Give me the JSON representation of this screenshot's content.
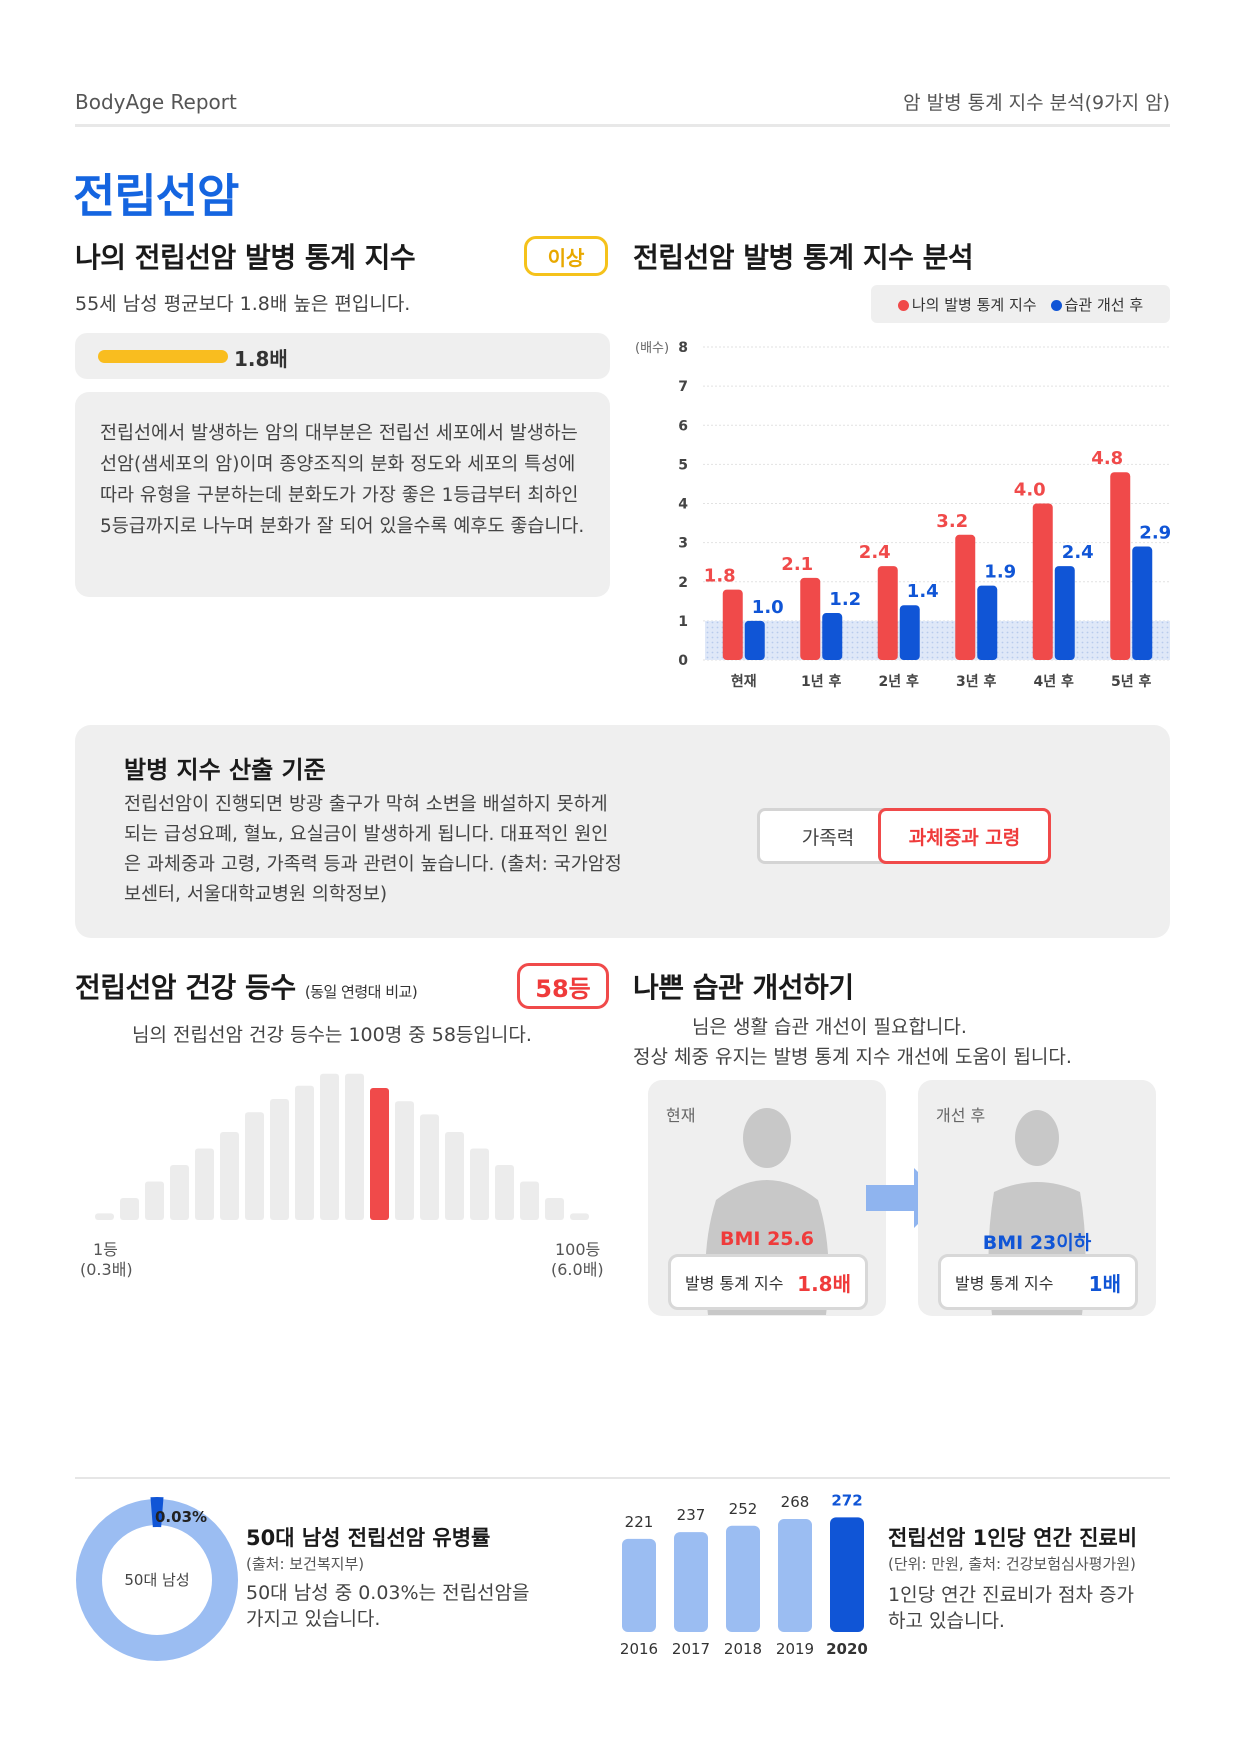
{
  "header": {
    "brand": "BodyAge Report",
    "section": "암 발병 통계 지수 분석(9가지 암)"
  },
  "page_title": "전립선암",
  "my_index": {
    "heading": "나의 전립선암 발병 통계 지수",
    "badge": "이상",
    "subtitle": "55세 남성 평균보다 1.8배 높은 편입니다.",
    "bar_label": "1.8배",
    "bar_value": 1.8,
    "description": "전립선에서 발생하는 암의 대부분은 전립선 세포에서 발생하는 선암(샘세포의 암)이며 종양조직의 분화 정도와 세포의 특성에 따라 유형을 구분하는데 분화도가 가장 좋은 1등급부터 최하인 5등급까지로 나누며 분화가 잘 되어 있을수록 예후도 좋습니다."
  },
  "analysis": {
    "heading": "전립선암 발병 통계 지수 분석",
    "legend_mine": "나의 발병 통계 지수",
    "legend_habit": "습관 개선 후",
    "y_unit": "(배수)"
  },
  "criteria": {
    "title": "발병 지수 산출 기준",
    "text": "전립선암이 진행되면 방광 출구가 막혀 소변을 배설하지 못하게 되는 급성요폐, 혈뇨, 요실금이 발생하게 됩니다. 대표적인 원인은 과체중과 고령, 가족력 등과 관련이 높습니다. (출처: 국가암정보센터, 서울대학교병원 의학정보)",
    "btn_family": "가족력",
    "btn_weight": "과체중과 고령"
  },
  "grade": {
    "heading": "전립선암 건강 등수",
    "note": "(동일 연령대 비교)",
    "badge": "58등",
    "subtitle": "님의 전립선암 건강 등수는 100명 중 58등입니다.",
    "left_label": "1등",
    "left_sub": "(0.3배)",
    "right_label": "100등",
    "right_sub": "(6.0배)",
    "highlight_index": 11,
    "heights": [
      6,
      20,
      35,
      50,
      65,
      80,
      98,
      110,
      122,
      133,
      133,
      120,
      108,
      96,
      80,
      65,
      50,
      35,
      20,
      6
    ]
  },
  "habit": {
    "heading": "나쁜 습관 개선하기",
    "line1": "님은 생활 습관 개선이 필요합니다.",
    "line2": "정상 체중 유지는 발병 통계 지수 개선에 도움이 됩니다.",
    "now_tag": "현재",
    "after_tag": "개선 후",
    "now_bmi": "BMI 25.6",
    "after_bmi": "BMI 23이하",
    "pill_label": "발병 통계 지수",
    "now_value": "1.8배",
    "after_value": "1배"
  },
  "prevalence": {
    "title": "50대 남성 전립선암 유병률",
    "source": "(출처: 보건복지부)",
    "text1": "50대 남성 중 0.03%는 전립선암을",
    "text2": "가지고 있습니다.",
    "donut_center": "50대 남성",
    "donut_label": "0.03%",
    "value_pct": 0.03
  },
  "cost": {
    "title": "전립선암 1인당 연간 진료비",
    "source": "(단위: 만원, 출처: 건강보험심사평가원)",
    "text1": "1인당 연간 진료비가 점차 증가",
    "text2": "하고 있습니다."
  },
  "colors": {
    "accent_blue": "#1565e0",
    "red": "#f04a4a",
    "blue": "#1055d6",
    "yellow": "#f9bd1f",
    "light_blue": "#9bbdf2"
  },
  "chart_data": [
    {
      "type": "bar",
      "title": "전립선암 발병 통계 지수 분석",
      "ylabel": "(배수)",
      "categories": [
        "현재",
        "1년 후",
        "2년 후",
        "3년 후",
        "4년 후",
        "5년 후"
      ],
      "series": [
        {
          "name": "나의 발병 통계 지수",
          "values": [
            1.8,
            2.1,
            2.4,
            3.2,
            4.0,
            4.8
          ],
          "labels": [
            "1.8",
            "2.1",
            "2.4",
            "3.2",
            "4.0",
            "4.8"
          ]
        },
        {
          "name": "습관 개선 후",
          "values": [
            1.0,
            1.2,
            1.4,
            1.9,
            2.4,
            2.9
          ],
          "labels": [
            "1.0",
            "1.2",
            "1.4",
            "1.9",
            "2.4",
            "2.9"
          ]
        }
      ],
      "yticks": [
        "0",
        "1",
        "2",
        "3",
        "4",
        "5",
        "6",
        "7",
        "8"
      ],
      "ylim": [
        0,
        8
      ],
      "reference_band": [
        0,
        1
      ],
      "grid": true
    },
    {
      "type": "bar",
      "title": "전립선암 1인당 연간 진료비",
      "categories": [
        "2016",
        "2017",
        "2018",
        "2019",
        "2020"
      ],
      "values": [
        221,
        237,
        252,
        268,
        272
      ],
      "labels": [
        "221",
        "237",
        "252",
        "268",
        "272"
      ],
      "highlight": "2020"
    }
  ]
}
